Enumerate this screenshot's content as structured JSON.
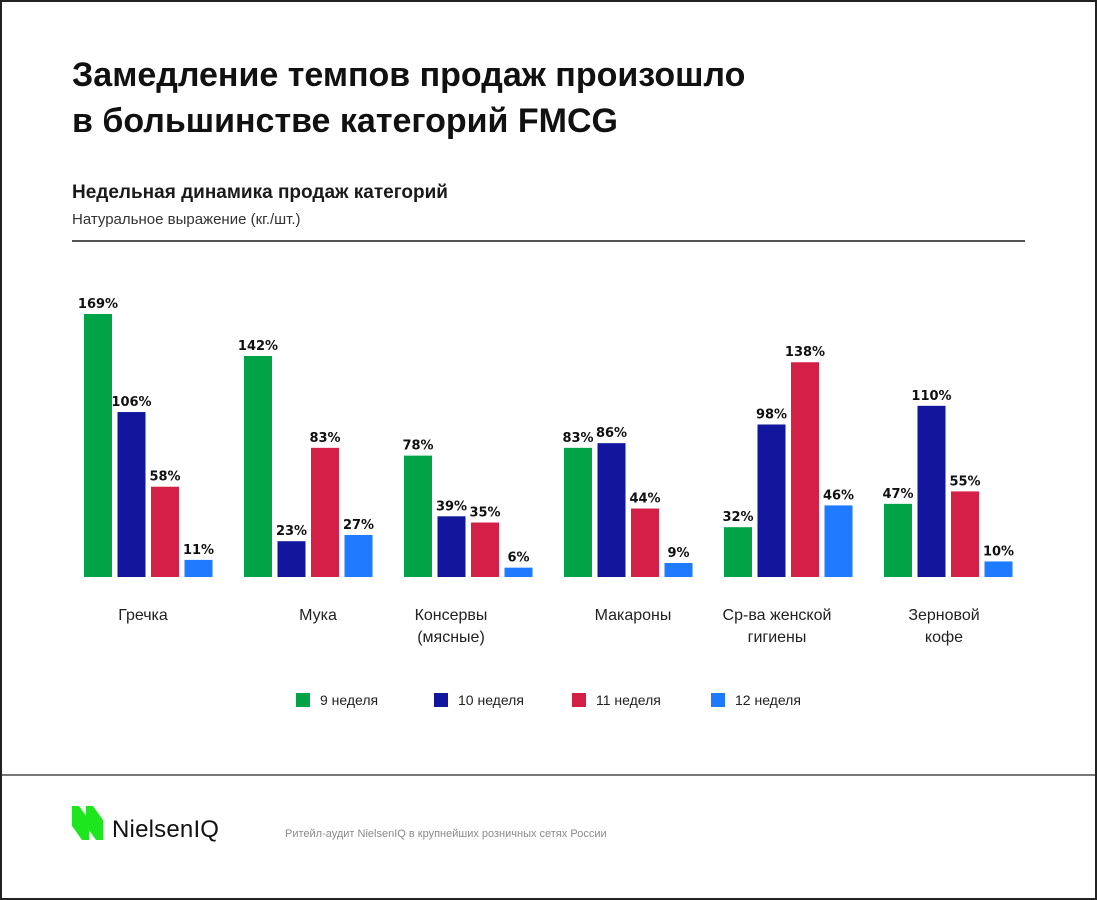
{
  "header": {
    "title_line1": "Замедление темпов продаж произошло",
    "title_line2": "в большинстве категорий FMCG"
  },
  "chart_data": {
    "type": "bar",
    "title": "Недельная динамика продаж категорий",
    "subtitle": "Натуральное выражение (кг./шт.)",
    "xlabel": "",
    "ylabel": "",
    "ylim": [
      0,
      180
    ],
    "grid": false,
    "legend_position": "bottom",
    "categories": [
      {
        "line1": "Гречка",
        "line2": ""
      },
      {
        "line1": "Мука",
        "line2": ""
      },
      {
        "line1": "Консервы",
        "line2": "(мясные)"
      },
      {
        "line1": "Макароны",
        "line2": ""
      },
      {
        "line1": "Ср-ва женской",
        "line2": "гигиены"
      },
      {
        "line1": "Зерновой",
        "line2": "кофе"
      }
    ],
    "series": [
      {
        "name": "9 неделя",
        "color": "#00A346",
        "values": [
          169,
          142,
          78,
          83,
          32,
          47
        ],
        "labels": [
          "169%",
          "142%",
          "78%",
          "83%",
          "32%",
          "47%"
        ]
      },
      {
        "name": "10 неделя",
        "color": "#12169C",
        "values": [
          106,
          23,
          39,
          86,
          98,
          110
        ],
        "labels": [
          "106%",
          "23%",
          "39%",
          "86%",
          "98%",
          "110%"
        ]
      },
      {
        "name": "11 неделя",
        "color": "#D41F46",
        "values": [
          58,
          83,
          35,
          44,
          138,
          55
        ],
        "labels": [
          "58%",
          "83%",
          "35%",
          "44%",
          "138%",
          "55%"
        ]
      },
      {
        "name": "12 неделя",
        "color": "#1E7BFF",
        "values": [
          11,
          27,
          6,
          9,
          46,
          10
        ],
        "labels": [
          "11%",
          "27%",
          "6%",
          "9%",
          "46%",
          "10%"
        ]
      }
    ]
  },
  "footer": {
    "logo_text": "NielsenIQ",
    "logo_color": "#1EE61E",
    "source": "Ритейл-аудит NielsenIQ в крупнейших розничных сетях России"
  }
}
